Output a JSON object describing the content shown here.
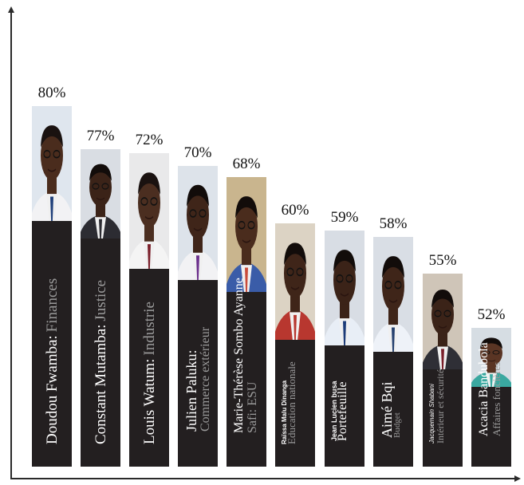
{
  "chart_data": {
    "type": "bar",
    "title": "",
    "xlabel": "",
    "ylabel": "",
    "ylim": [
      0,
      85
    ],
    "categories": [
      "Doudou Fwamba: Finances",
      "Constant Mutamba: Justice",
      "Louis Watum: Industrie",
      "Julien Paluku: Commerce extérieur",
      "Marie-Thérèse Sombo Ayanne Safi: ESU",
      "Raïssa Malu Dinanga Education nationale",
      "Jean Lucien busa Portefeuille",
      "Aimé Bqi Budget",
      "Jacquemain Shabani Intérieur et sécurité",
      "Acacia Bandubola Affaires foncières"
    ],
    "values": [
      80,
      77,
      72,
      70,
      68,
      60,
      59,
      58,
      55,
      52
    ],
    "value_labels": [
      "80%",
      "77%",
      "72%",
      "70%",
      "68%",
      "60%",
      "59%",
      "58%",
      "55%",
      "52%"
    ],
    "bars": [
      {
        "name": "Doudou Fwamba:",
        "role": "Finances",
        "layout": "single",
        "name_size": 19,
        "role_size": 19,
        "skin": "#4a2c1d",
        "bg": "#dfe6ee",
        "shirt": "#f2f2f4",
        "tie": "#1f3f7a",
        "hair": "#1a1210"
      },
      {
        "name": "Constant Mutamba:",
        "role": "Justice",
        "layout": "single",
        "name_size": 19,
        "role_size": 19,
        "skin": "#3b2318",
        "bg": "#d9dde3",
        "shirt": "#2c2c32",
        "tie": "#2c2c32",
        "hair": "#120c0a"
      },
      {
        "name": "Louis Watum:",
        "role": "Industrie",
        "layout": "single",
        "name_size": 19,
        "role_size": 19,
        "skin": "#4b2e20",
        "bg": "#e9e9ea",
        "shirt": "#f4f4f4",
        "tie": "#7a1f2a",
        "hair": "#1a1210"
      },
      {
        "name": "Julien Paluku:",
        "role": "Commerce extérieur",
        "layout": "stack",
        "name_size": 18,
        "role_size": 16,
        "skin": "#3f2519",
        "bg": "#dde3ea",
        "shirt": "#f2f2f4",
        "tie": "#6b2f8c",
        "hair": "#120c0a"
      },
      {
        "name": "Marie-Thérèse Sombo Ayanne",
        "role": "Safi: ESU",
        "layout": "stack",
        "name_size": 16,
        "role_size": 16,
        "skin": "#4a2c1d",
        "bg": "#c9b58e",
        "shirt": "#3a5ca8",
        "tie": "#c94b3a",
        "hair": "#120c0a"
      },
      {
        "name": "Raïssa Malu Dinanga",
        "role": "Education nationale",
        "layout": "overlap",
        "name_size": 8,
        "role_size": 13,
        "skin": "#3f2519",
        "bg": "#dcd3c4",
        "shirt": "#b8372f",
        "tie": "#b8372f",
        "hair": "#120c0a"
      },
      {
        "name": "Jean Lucien busa",
        "role": "Portefeuille",
        "layout": "overlap",
        "name_size": 9,
        "role_size": 16,
        "skin": "#3b2318",
        "bg": "#d8dde4",
        "shirt": "#e8eef6",
        "tie": "#1d3c78",
        "hair": "#120c0a"
      },
      {
        "name": "Aimé Bqi",
        "role": "Budget",
        "layout": "overlap",
        "name_size": 18,
        "role_size": 11,
        "skin": "#3f2519",
        "bg": "#d9dee5",
        "shirt": "#eef2f8",
        "tie": "#25406e",
        "hair": "#120c0a"
      },
      {
        "name": "Jacquemain Shabani",
        "role": "Intérieur et sécurité",
        "layout": "stack",
        "name_size": 8,
        "role_size": 12,
        "skin": "#3b2318",
        "bg": "#cfc5b8",
        "shirt": "#2f2f36",
        "tie": "#7a1f2a",
        "hair": "#120c0a"
      },
      {
        "name": "Acacia Bandubola",
        "role": "Affaires foncières",
        "layout": "stack",
        "name_size": 16,
        "role_size": 13,
        "skin": "#5a3524",
        "bg": "#d6dde3",
        "shirt": "#3aa8a0",
        "tie": "#3aa8a0",
        "hair": "#120c0a"
      }
    ]
  }
}
